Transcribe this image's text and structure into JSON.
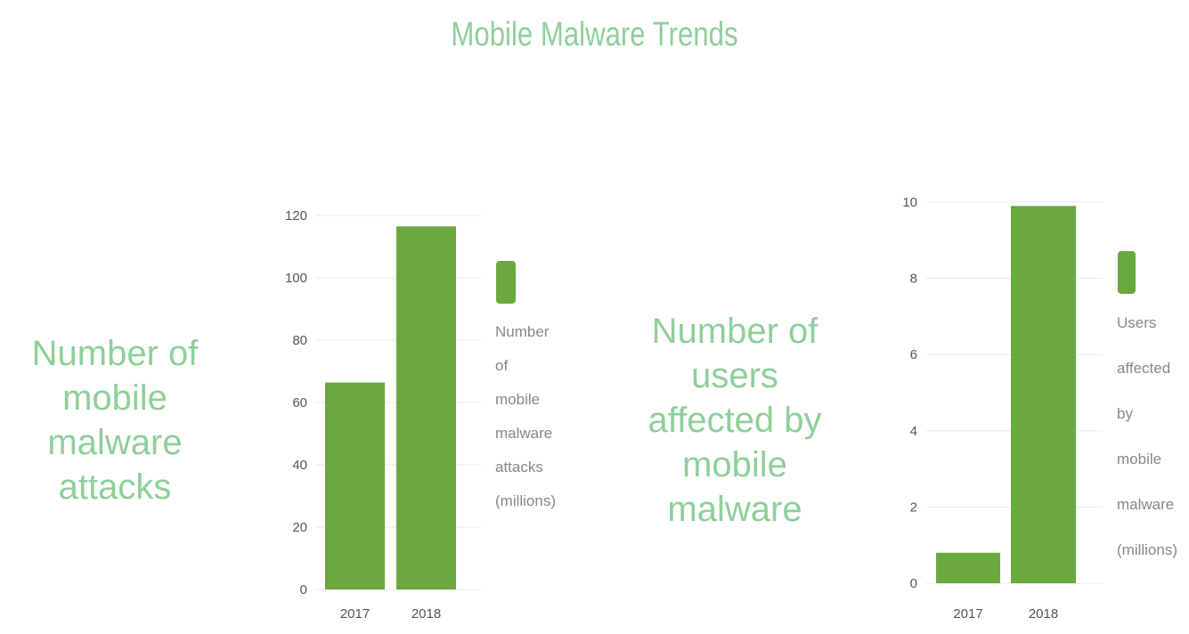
{
  "page": {
    "title": "Mobile Malware Trends"
  },
  "chart_data": [
    {
      "type": "bar",
      "title": "Number of mobile malware attacks",
      "categories": [
        "2017",
        "2018"
      ],
      "series": [
        {
          "name": "Number of mobile malware attacks (millions)",
          "values": [
            66.4,
            116.5
          ]
        }
      ],
      "ylim": [
        0,
        120
      ],
      "yticks": [
        "0",
        "20",
        "40",
        "60",
        "80",
        "100",
        "120"
      ],
      "color": "#6aa93e",
      "grid": true,
      "legend_position": "right"
    },
    {
      "type": "bar",
      "title": "Number of users affected by mobile malware",
      "categories": [
        "2017",
        "2018"
      ],
      "series": [
        {
          "name": "Users affected by mobile malware (millions)",
          "values": [
            0.8,
            9.9
          ]
        }
      ],
      "ylim": [
        0,
        10
      ],
      "yticks": [
        "0",
        "2",
        "4",
        "6",
        "8",
        "10"
      ],
      "color": "#6aa93e",
      "grid": true,
      "legend_position": "right"
    }
  ],
  "titles": {
    "chart1_lines": [
      "Number of mobile",
      "malware attacks"
    ],
    "chart2_lines": [
      "Number of users",
      "affected by mobile",
      "malware"
    ]
  },
  "legends": {
    "chart1_lines": [
      "Number",
      "of",
      "mobile",
      "malware",
      "attacks",
      "(millions)"
    ],
    "chart2_lines": [
      "Users",
      "affected",
      "by",
      "mobile",
      "malware",
      "(millions)"
    ]
  }
}
